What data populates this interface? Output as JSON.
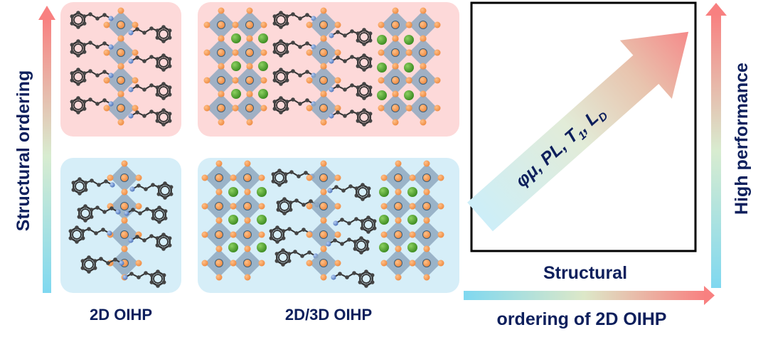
{
  "left_axis": {
    "label": "Structural ordering"
  },
  "panels": {
    "label_2d": "2D OIHP",
    "label_2d3d": "2D/3D OIHP"
  },
  "performance_box": {
    "arrow_text": {
      "part1": "φμ, PL, T",
      "sub1": "1",
      "part2": ", L",
      "sub2": "D"
    }
  },
  "bottom_axis": {
    "label_line1": "Structural",
    "label_line2": "ordering of 2D OIHP"
  },
  "right_axis": {
    "label": "High performance"
  },
  "colors": {
    "navy_text": "#0d1f5c",
    "high_order_panel": "#fdd9d9",
    "low_order_panel": "#d6eef8",
    "gradient_low": "#7fd8f0",
    "gradient_high": "#f88080",
    "octahedron": "#8fa8c0",
    "halide_atom": "#f5a25a",
    "cation_atom": "#4a9a2a",
    "nitrogen_atom": "#6a90d0",
    "carbon_atom": "#444444"
  }
}
